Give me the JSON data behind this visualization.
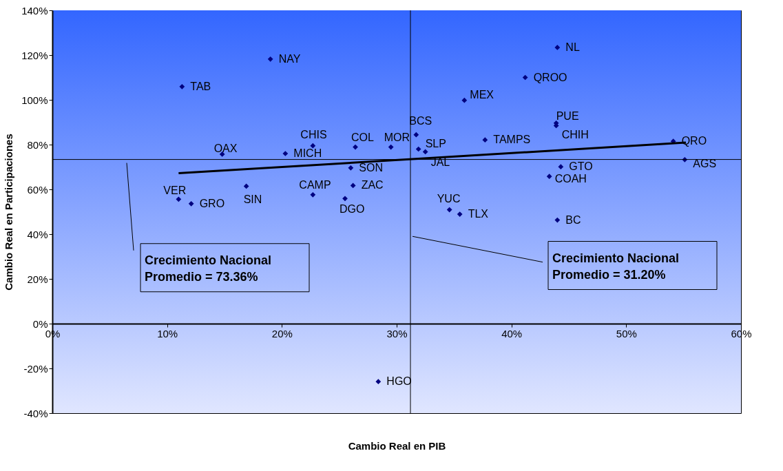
{
  "chart_data": {
    "type": "scatter",
    "xlabel": "Cambio Real en PIB",
    "ylabel": "Cambio Real en Participaciones",
    "xlim": [
      0,
      60
    ],
    "ylim": [
      -40,
      140
    ],
    "xticks": [
      {
        "value": 0,
        "label": "0%"
      },
      {
        "value": 10,
        "label": "10%"
      },
      {
        "value": 20,
        "label": "20%"
      },
      {
        "value": 30,
        "label": "30%"
      },
      {
        "value": 40,
        "label": "40%"
      },
      {
        "value": 50,
        "label": "50%"
      },
      {
        "value": 60,
        "label": "60%"
      }
    ],
    "yticks": [
      {
        "value": -40,
        "label": "-40%"
      },
      {
        "value": -20,
        "label": "-20%"
      },
      {
        "value": 0,
        "label": "0%"
      },
      {
        "value": 20,
        "label": "20%"
      },
      {
        "value": 40,
        "label": "40%"
      },
      {
        "value": 60,
        "label": "60%"
      },
      {
        "value": 80,
        "label": "80%"
      },
      {
        "value": 100,
        "label": "100%"
      },
      {
        "value": 120,
        "label": "120%"
      },
      {
        "value": 140,
        "label": "140%"
      }
    ],
    "grid": false,
    "marker": "diamond",
    "series": [
      {
        "color": "#000080",
        "x": [
          19.0,
          11.3,
          14.8,
          20.3,
          22.7,
          26.4,
          29.5,
          26.0,
          26.2,
          22.7,
          25.5,
          16.9,
          11.0,
          12.1,
          31.7,
          31.9,
          32.5,
          35.9,
          37.7,
          41.2,
          44.0,
          43.9,
          43.9,
          54.1,
          55.1,
          44.3,
          43.3,
          34.6,
          35.5,
          44.0,
          28.4
        ],
        "values": [
          118.2,
          105.9,
          75.7,
          76.0,
          79.5,
          78.9,
          78.9,
          69.6,
          61.7,
          57.6,
          55.9,
          61.4,
          55.6,
          53.6,
          84.4,
          78.0,
          76.8,
          99.8,
          82.1,
          110.0,
          123.4,
          89.6,
          88.5,
          81.5,
          73.3,
          70.1,
          65.8,
          50.9,
          48.9,
          46.3,
          -25.9
        ]
      },
      {
        "type": "line",
        "marker": "none",
        "color": "#000000",
        "x": [
          11.0,
          55.2
        ],
        "values": [
          67.2,
          80.9
        ]
      }
    ],
    "annotations": [
      {
        "text": "NAY",
        "x": 19.0,
        "y": 118.2
      },
      {
        "text": "TAB",
        "x": 11.3,
        "y": 105.9
      },
      {
        "text": "OAX",
        "x": 14.8,
        "y": 75.7
      },
      {
        "text": "MICH",
        "x": 20.3,
        "y": 76.0
      },
      {
        "text": "CHIS",
        "x": 22.7,
        "y": 79.5
      },
      {
        "text": "COL",
        "x": 26.4,
        "y": 78.9
      },
      {
        "text": "MOR",
        "x": 29.5,
        "y": 78.9
      },
      {
        "text": "SON",
        "x": 26.0,
        "y": 69.6
      },
      {
        "text": "ZAC",
        "x": 26.2,
        "y": 61.7
      },
      {
        "text": "CAMP",
        "x": 22.7,
        "y": 57.6
      },
      {
        "text": "DGO",
        "x": 25.5,
        "y": 55.9
      },
      {
        "text": "SIN",
        "x": 16.9,
        "y": 61.4
      },
      {
        "text": "VER",
        "x": 11.0,
        "y": 55.6
      },
      {
        "text": "GRO",
        "x": 12.1,
        "y": 53.6
      },
      {
        "text": "BCS",
        "x": 31.7,
        "y": 84.4
      },
      {
        "text": "SLP",
        "x": 31.9,
        "y": 78.0
      },
      {
        "text": "JAL",
        "x": 32.5,
        "y": 76.8
      },
      {
        "text": "MEX",
        "x": 35.9,
        "y": 99.8
      },
      {
        "text": "TAMPS",
        "x": 37.7,
        "y": 82.1
      },
      {
        "text": "QROO",
        "x": 41.2,
        "y": 110.0
      },
      {
        "text": "NL",
        "x": 44.0,
        "y": 123.4
      },
      {
        "text": "PUE",
        "x": 43.9,
        "y": 89.6
      },
      {
        "text": "CHIH",
        "x": 43.9,
        "y": 88.5
      },
      {
        "text": "QRO",
        "x": 54.1,
        "y": 81.5
      },
      {
        "text": "AGS",
        "x": 55.1,
        "y": 73.3
      },
      {
        "text": "GTO",
        "x": 44.3,
        "y": 70.1
      },
      {
        "text": "COAH",
        "x": 43.3,
        "y": 65.8
      },
      {
        "text": "YUC",
        "x": 34.6,
        "y": 50.9
      },
      {
        "text": "TLX",
        "x": 35.5,
        "y": 48.9
      },
      {
        "text": "BC",
        "x": 44.0,
        "y": 46.3
      },
      {
        "text": "HGO",
        "x": 28.4,
        "y": -25.9
      }
    ],
    "ref_lines": [
      {
        "axis": "y",
        "value": 73.36,
        "label": "Crecimiento Nacional\nPromedio = 73.36%",
        "color": "#000000"
      },
      {
        "axis": "x",
        "value": 31.2,
        "label": "Crecimiento Nacional\nPromedio = 31.20%",
        "color": "#000000"
      }
    ]
  }
}
